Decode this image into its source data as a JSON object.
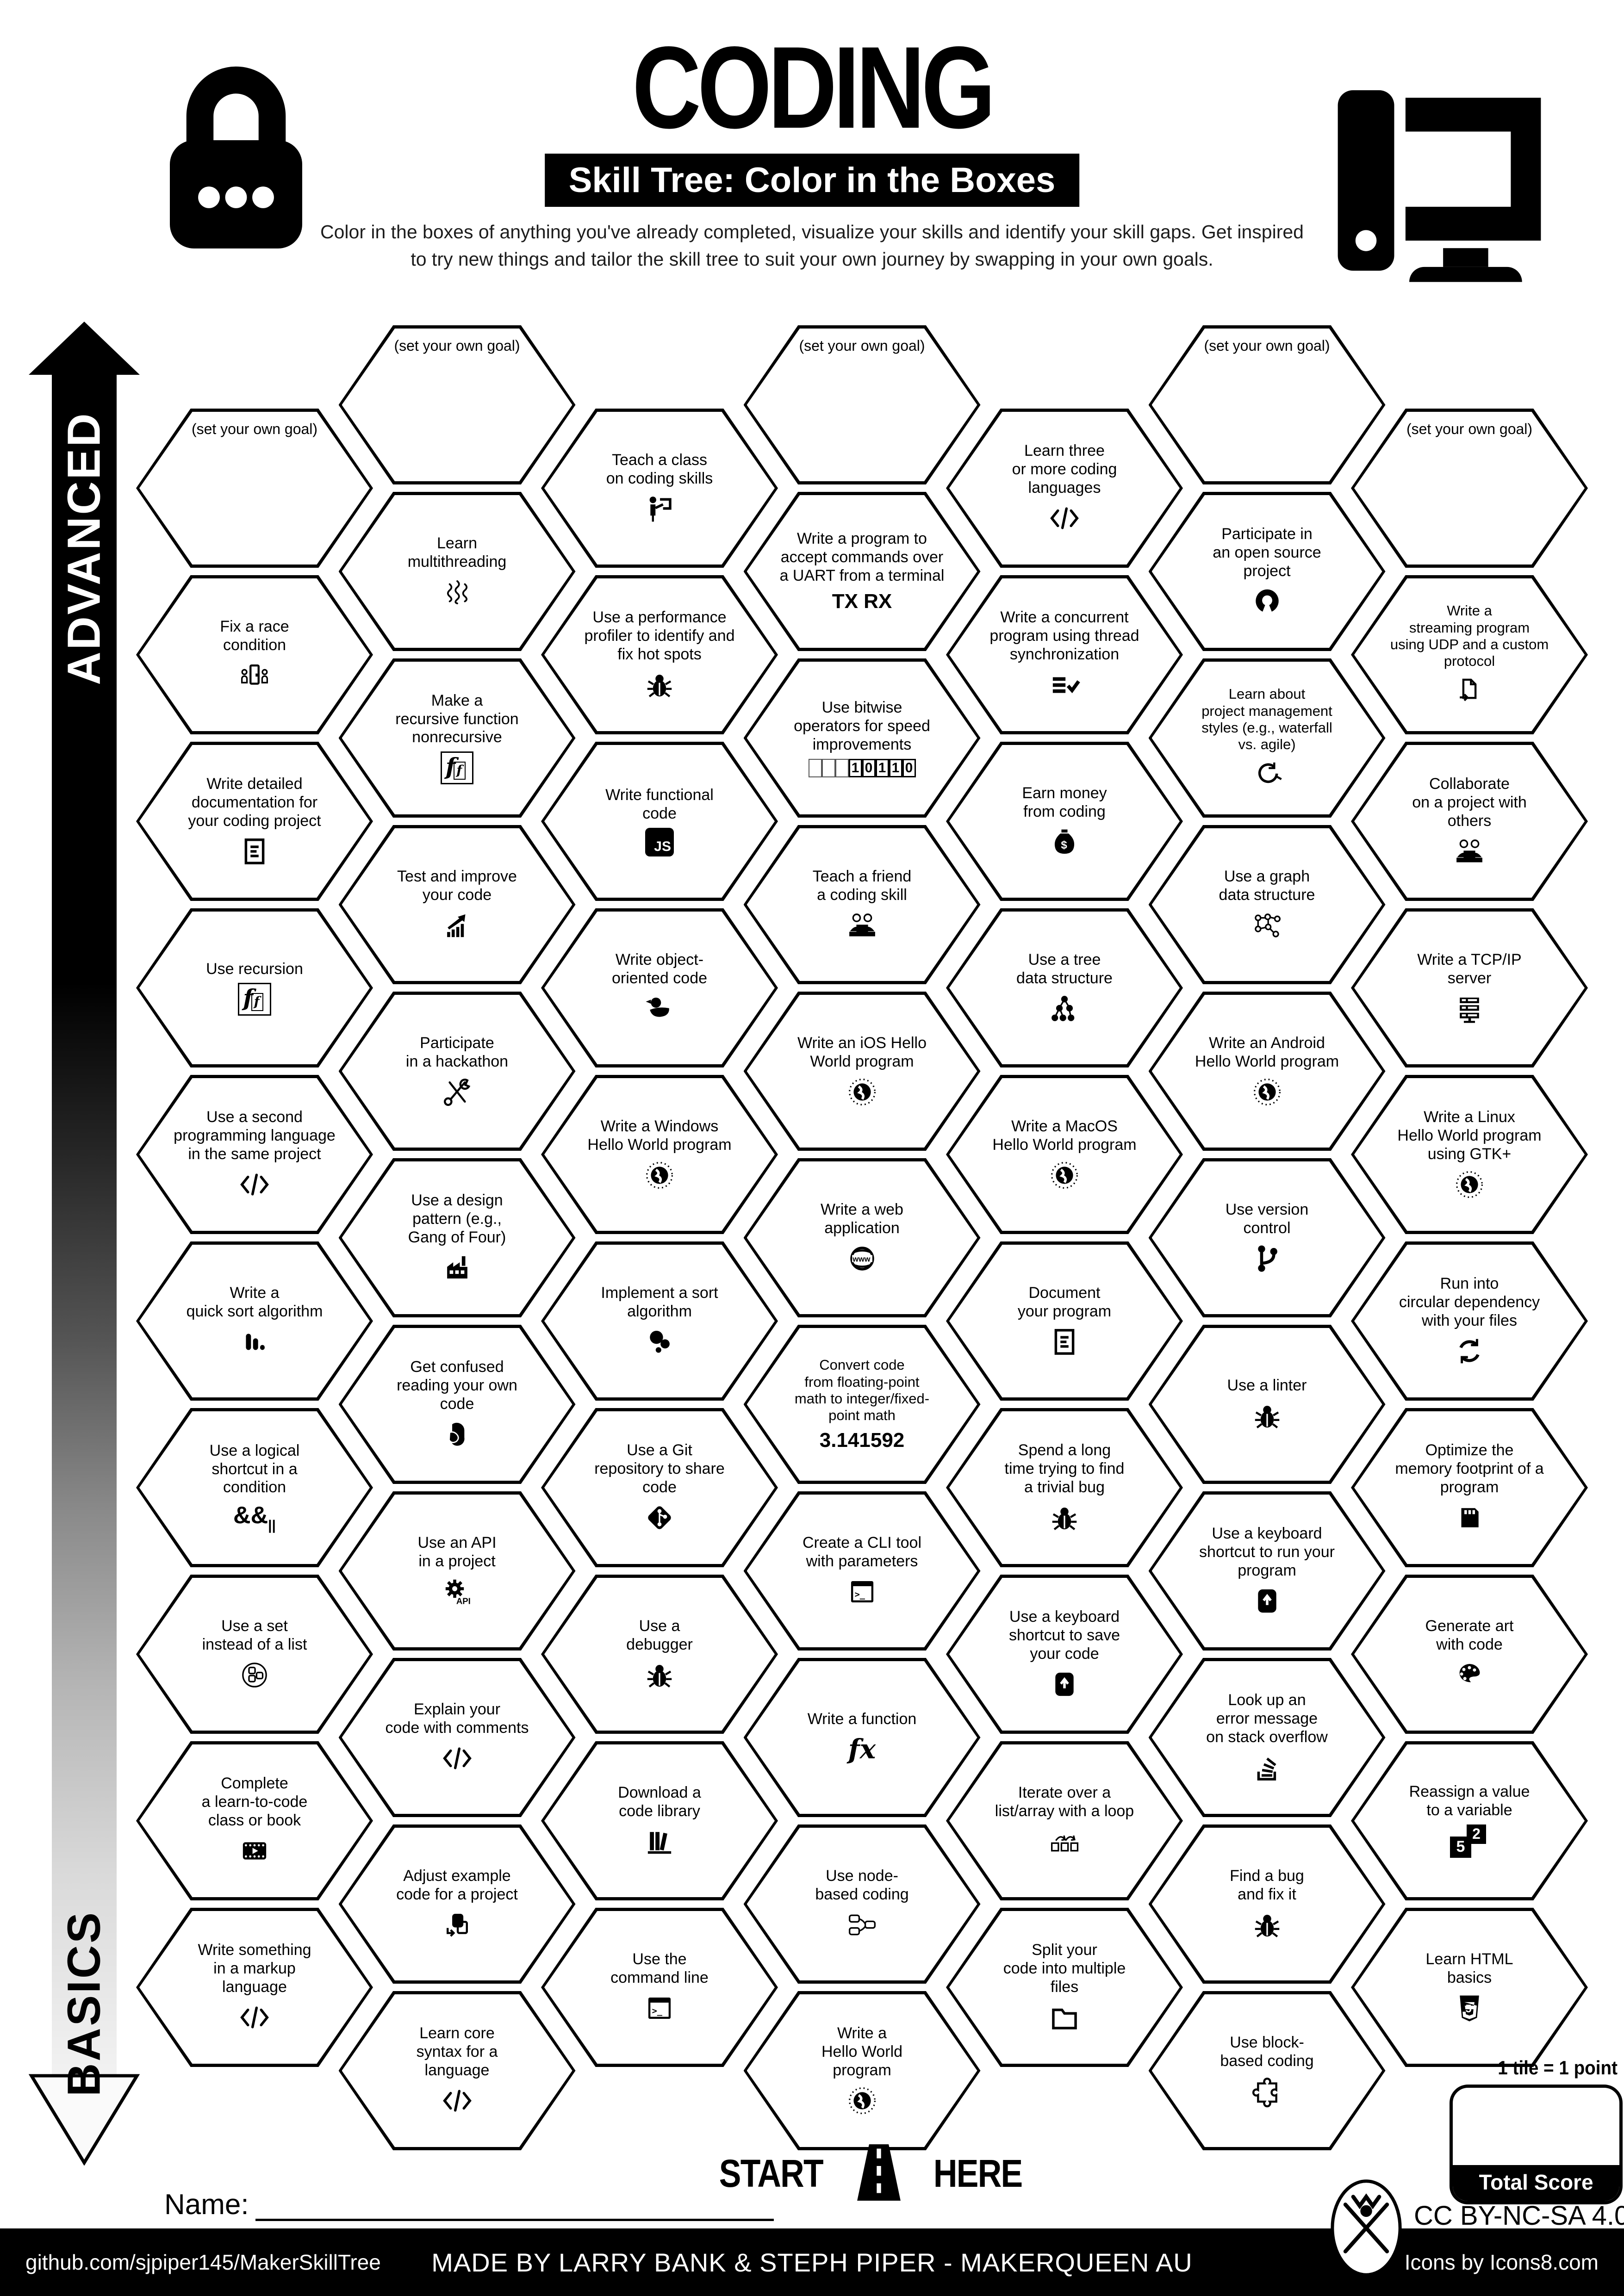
{
  "header": {
    "title": "CODING",
    "subtitle": "Skill Tree: Color in the Boxes",
    "description": "Color in the boxes of anything you've already completed, visualize your skills and identify your skill gaps.  Get inspired\nto try new things and tailor the skill tree to suit your own journey by swapping in your own goals."
  },
  "arrow": {
    "top_label": "ADVANCED",
    "bottom_label": "BASICS"
  },
  "start_here": {
    "start": "START",
    "here": "HERE"
  },
  "name_label": "Name:",
  "score": {
    "tile_note": "1 tile = 1 point",
    "total_label": "Total Score"
  },
  "license": "CC BY-NC-SA 4.0",
  "footer": {
    "left": "github.com/sjpiper145/MakerSkillTree",
    "center": "MADE BY LARRY BANK & STEPH PIPER  -  MAKERQUEEN AU",
    "right": "Icons by Icons8.com"
  },
  "colors": {
    "ink": "#000000",
    "paper": "#ffffff"
  },
  "columns": [
    {
      "items": [
        {
          "label": "(set your own goal)",
          "icon": ""
        },
        {
          "label": "Fix a race\ncondition",
          "icon": "door-people"
        },
        {
          "label": "Write detailed\ndocumentation for\nyour coding project",
          "icon": "doc"
        },
        {
          "label": "Use recursion",
          "icon": "recursion"
        },
        {
          "label": "Use a second\nprogramming language\nin the same project",
          "icon": "code"
        },
        {
          "label": "Write a\nquick sort algorithm",
          "icon": "bars"
        },
        {
          "label": "Use a logical\nshortcut in a\ncondition",
          "icon": "logical"
        },
        {
          "label": "Use a set\ninstead of a list",
          "icon": "set"
        },
        {
          "label": "Complete\na learn-to-code\nclass or book",
          "icon": "film"
        },
        {
          "label": "Write something\nin a markup\nlanguage",
          "icon": "code"
        }
      ]
    },
    {
      "items": [
        {
          "label": "(set your own goal)",
          "icon": ""
        },
        {
          "label": "Learn\nmultithreading",
          "icon": "threads"
        },
        {
          "label": "Make a\nrecursive function\nnonrecursive",
          "icon": "recursion"
        },
        {
          "label": "Test and improve\nyour code",
          "icon": "chart"
        },
        {
          "label": "Participate\nin a hackathon",
          "icon": "tools"
        },
        {
          "label": "Use a design\npattern (e.g.,\nGang of Four)",
          "icon": "factory"
        },
        {
          "label": "Get confused\nreading your own\ncode",
          "icon": "confused"
        },
        {
          "label": "Use an API\nin a project",
          "icon": "gearapi"
        },
        {
          "label": "Explain your\ncode with comments",
          "icon": "code"
        },
        {
          "label": "Adjust example\ncode for a project",
          "icon": "copy"
        },
        {
          "label": "Learn core\nsyntax for a\nlanguage",
          "icon": "code"
        }
      ]
    },
    {
      "items": [
        {
          "label": "Teach a class\non coding skills",
          "icon": "person-board"
        },
        {
          "label": "Use a performance\nprofiler to identify and\nfix hot spots",
          "icon": "bug"
        },
        {
          "label": "Write functional\ncode",
          "icon": "js"
        },
        {
          "label": "Write object-\noriented code",
          "icon": "duck"
        },
        {
          "label": "Write a Windows\nHello World program",
          "icon": "globe"
        },
        {
          "label": "Implement a sort\nalgorithm",
          "icon": "sortcircles"
        },
        {
          "label": "Use a Git\nrepository to share\ncode",
          "icon": "git"
        },
        {
          "label": "Use a\ndebugger",
          "icon": "bug"
        },
        {
          "label": "Download a\ncode library",
          "icon": "books"
        },
        {
          "label": "Use the\ncommand line",
          "icon": "terminal"
        }
      ]
    },
    {
      "items": [
        {
          "label": "(set your own goal)",
          "icon": ""
        },
        {
          "label": "Write a program to\naccept commands over\na UART from a terminal",
          "icon": "txrx"
        },
        {
          "label": "Use bitwise\noperators for speed\nimprovements",
          "icon": "bits"
        },
        {
          "label": "Teach a friend\na coding skill",
          "icon": "people"
        },
        {
          "label": "Write an iOS Hello\nWorld program",
          "icon": "globe"
        },
        {
          "label": "Write a web\napplication",
          "icon": "www"
        },
        {
          "label": "Convert code\nfrom floating-point\nmath to integer/fixed-\npoint math",
          "icon": "pi"
        },
        {
          "label": "Create a CLI tool\nwith parameters",
          "icon": "terminal"
        },
        {
          "label": "Write a function",
          "icon": "fx"
        },
        {
          "label": "Use node-\nbased coding",
          "icon": "nodes"
        },
        {
          "label": "Write a\nHello World\nprogram",
          "icon": "globe"
        }
      ]
    },
    {
      "items": [
        {
          "label": "Learn three\nor more coding\nlanguages",
          "icon": "code"
        },
        {
          "label": "Write a concurrent\nprogram using thread\nsynchronization",
          "icon": "checklines"
        },
        {
          "label": "Earn money\nfrom coding",
          "icon": "money"
        },
        {
          "label": "Use a tree\ndata structure",
          "icon": "tree"
        },
        {
          "label": "Write a MacOS\nHello World program",
          "icon": "globe"
        },
        {
          "label": "Document\nyour program",
          "icon": "doc"
        },
        {
          "label": "Spend a long\ntime trying to find\na trivial bug",
          "icon": "bug"
        },
        {
          "label": "Use a keyboard\nshortcut to save\nyour code",
          "icon": "key"
        },
        {
          "label": "Iterate over a\nlist/array with a loop",
          "icon": "loop"
        },
        {
          "label": "Split your\ncode into multiple\nfiles",
          "icon": "folder"
        }
      ]
    },
    {
      "items": [
        {
          "label": "(set your own goal)",
          "icon": ""
        },
        {
          "label": "Participate in\nan open source\nproject",
          "icon": "opensource"
        },
        {
          "label": "Learn about\nproject management\nstyles (e.g., waterfall\nvs. agile)",
          "icon": "agile"
        },
        {
          "label": "Use a graph\ndata structure",
          "icon": "graph"
        },
        {
          "label": "Write an Android\nHello World program",
          "icon": "globe"
        },
        {
          "label": "Use version\ncontrol",
          "icon": "branch"
        },
        {
          "label": "Use a linter",
          "icon": "bug"
        },
        {
          "label": "Use a keyboard\nshortcut to run your\nprogram",
          "icon": "key"
        },
        {
          "label": "Look up an\nerror message\non stack overflow",
          "icon": "stack"
        },
        {
          "label": "Find a bug\nand fix it",
          "icon": "bug"
        },
        {
          "label": "Use block-\nbased coding",
          "icon": "puzzle"
        }
      ]
    },
    {
      "items": [
        {
          "label": "(set your own goal)",
          "icon": ""
        },
        {
          "label": "Write a\nstreaming program\nusing UDP and a custom\nprotocol",
          "icon": "arrowdoc"
        },
        {
          "label": "Collaborate\non a project with\nothers",
          "icon": "people"
        },
        {
          "label": "Write a TCP/IP\nserver",
          "icon": "server"
        },
        {
          "label": "Write a Linux\nHello World program\nusing GTK+",
          "icon": "globe"
        },
        {
          "label": "Run into\ncircular dependency\nwith your files",
          "icon": "sync"
        },
        {
          "label": "Optimize the\nmemory footprint of a\nprogram",
          "icon": "memory"
        },
        {
          "label": "Generate art\nwith code",
          "icon": "palette"
        },
        {
          "label": "Reassign a value\nto a variable",
          "icon": "reassign"
        },
        {
          "label": "Learn HTML\nbasics",
          "icon": "html5"
        }
      ]
    }
  ]
}
